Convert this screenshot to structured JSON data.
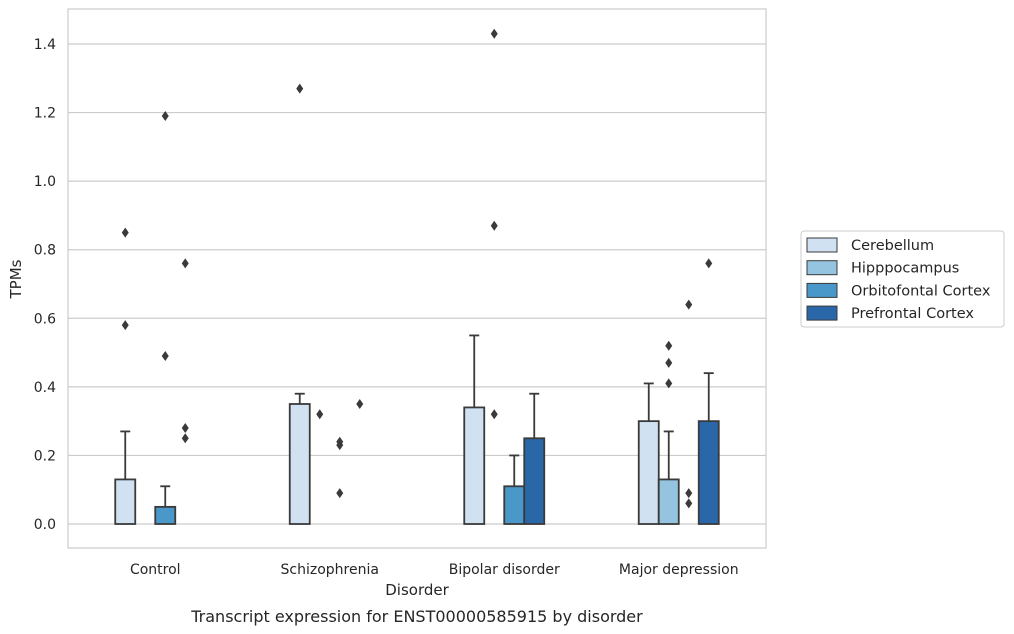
{
  "caption": "Transcript expression for ENST00000585915 by disorder",
  "chart_data": {
    "type": "bar",
    "xlabel": "Disorder",
    "ylabel": "TPMs",
    "ylim": [
      -0.07,
      1.5
    ],
    "yticks": [
      "0.0",
      "0.2",
      "0.4",
      "0.6",
      "0.8",
      "1.0",
      "1.2",
      "1.4"
    ],
    "grid": true,
    "legend_position": "right",
    "categories": [
      "Control",
      "Schizophrenia",
      "Bipolar disorder",
      "Major depression"
    ],
    "series": [
      {
        "name": "Cerebellum",
        "color": "#d0e1f2",
        "values": [
          0.13,
          0.35,
          0.34,
          0.3
        ],
        "error_upper": [
          0.27,
          0.38,
          0.55,
          0.41
        ],
        "outliers": [
          [
            0.85,
            0.58
          ],
          [
            1.27
          ],
          [],
          []
        ]
      },
      {
        "name": "Hipppocampus",
        "color": "#94c4df",
        "values": [
          0.0,
          0.0,
          0.0,
          0.13
        ],
        "error_upper": [
          null,
          null,
          null,
          0.27
        ],
        "outliers": [
          [],
          [
            0.32
          ],
          [
            1.43,
            0.87,
            0.32
          ],
          [
            0.52,
            0.47,
            0.41
          ]
        ]
      },
      {
        "name": "Orbitofontal Cortex",
        "color": "#4a98c9",
        "values": [
          0.05,
          0.0,
          0.11,
          0.0
        ],
        "error_upper": [
          0.11,
          null,
          0.2,
          null
        ],
        "outliers": [
          [
            1.19,
            0.49
          ],
          [
            0.24,
            0.23,
            0.09
          ],
          [],
          [
            0.09,
            0.06,
            0.64
          ]
        ]
      },
      {
        "name": "Prefrontal Cortex",
        "color": "#2a67a8",
        "values": [
          0.0,
          0.0,
          0.25,
          0.3
        ],
        "error_upper": [
          null,
          null,
          0.38,
          0.44
        ],
        "outliers": [
          [
            0.76,
            0.28,
            0.25
          ],
          [
            0.35
          ],
          [],
          [
            0.76
          ]
        ]
      }
    ]
  }
}
